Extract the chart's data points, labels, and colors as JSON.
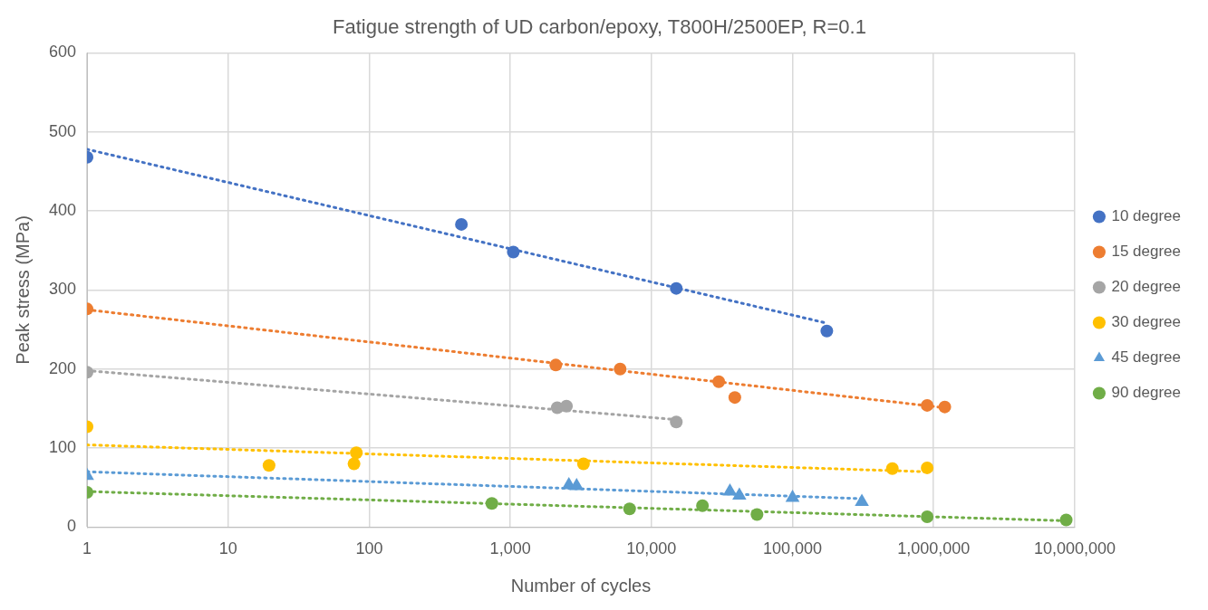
{
  "chart_data": {
    "type": "scatter",
    "title": "Fatigue strength of UD carbon/epoxy, T800H/2500EP, R=0.1",
    "xlabel": "Number of cycles",
    "ylabel": "Peak stress (MPa)",
    "log": "x",
    "grid": true,
    "legend": "right",
    "xlim": [
      1,
      10000000
    ],
    "xticks": [
      1,
      10,
      100,
      {
        "value": 1000,
        "label": "1,000"
      },
      {
        "value": 10000,
        "label": "10,000"
      },
      {
        "value": 100000,
        "label": "100,000"
      },
      {
        "value": 1000000,
        "label": "1,000,000"
      },
      {
        "value": 10000000,
        "label": "10,000,000"
      }
    ],
    "ylim": [
      0,
      600
    ],
    "yticks": [
      0,
      100,
      200,
      300,
      400,
      500,
      600
    ],
    "series": [
      {
        "name": "10 degree",
        "type": "scatter",
        "marker": "circle",
        "color": "#4472c4",
        "x": [
          1,
          450,
          1050,
          15000,
          175000
        ],
        "values": [
          468,
          383,
          348,
          302,
          248
        ]
      },
      {
        "name": "15 degree",
        "type": "scatter",
        "marker": "circle",
        "color": "#ed7d31",
        "x": [
          1,
          2100,
          6000,
          30000,
          39000,
          900000,
          1200000
        ],
        "values": [
          276,
          205,
          200,
          184,
          164,
          154,
          152
        ]
      },
      {
        "name": "20 degree",
        "type": "scatter",
        "marker": "circle",
        "color": "#a5a5a5",
        "x": [
          1,
          2150,
          2500,
          15000
        ],
        "values": [
          196,
          151,
          153,
          133
        ]
      },
      {
        "name": "30 degree",
        "type": "scatter",
        "marker": "circle",
        "color": "#ffc000",
        "x": [
          1,
          19.5,
          78,
          81,
          3300,
          510000,
          900000
        ],
        "values": [
          127,
          78,
          80,
          94,
          80,
          74,
          75
        ]
      },
      {
        "name": "45 degree",
        "type": "scatter",
        "marker": "triangle",
        "color": "#5b9bd5",
        "x": [
          1,
          2600,
          2950,
          36000,
          42000,
          100000,
          310000
        ],
        "values": [
          65,
          53,
          52,
          45,
          40,
          37,
          32
        ]
      },
      {
        "name": "90 degree",
        "type": "scatter",
        "marker": "circle",
        "color": "#70ad47",
        "x": [
          1,
          740,
          7000,
          23000,
          56000,
          900000,
          8700000
        ],
        "values": [
          44,
          30,
          23,
          27,
          16,
          13,
          9
        ]
      },
      {
        "type": "line",
        "marker": "none",
        "line_style": "dotted",
        "color": "#4472c4",
        "x": [
          1,
          175000
        ],
        "values": [
          478,
          258
        ]
      },
      {
        "type": "line",
        "marker": "none",
        "line_style": "dotted",
        "color": "#ed7d31",
        "x": [
          1,
          1200000
        ],
        "values": [
          275,
          151
        ]
      },
      {
        "type": "line",
        "marker": "none",
        "line_style": "dotted",
        "color": "#a5a5a5",
        "x": [
          1,
          15000
        ],
        "values": [
          198,
          136
        ]
      },
      {
        "type": "line",
        "marker": "none",
        "line_style": "dotted",
        "color": "#ffc000",
        "x": [
          1,
          900000
        ],
        "values": [
          104,
          70
        ]
      },
      {
        "type": "line",
        "marker": "none",
        "line_style": "dotted",
        "color": "#5b9bd5",
        "x": [
          1,
          310000
        ],
        "values": [
          70,
          36
        ]
      },
      {
        "type": "line",
        "marker": "none",
        "line_style": "dotted",
        "color": "#70ad47",
        "x": [
          1,
          8700000
        ],
        "values": [
          45,
          8
        ]
      }
    ]
  }
}
